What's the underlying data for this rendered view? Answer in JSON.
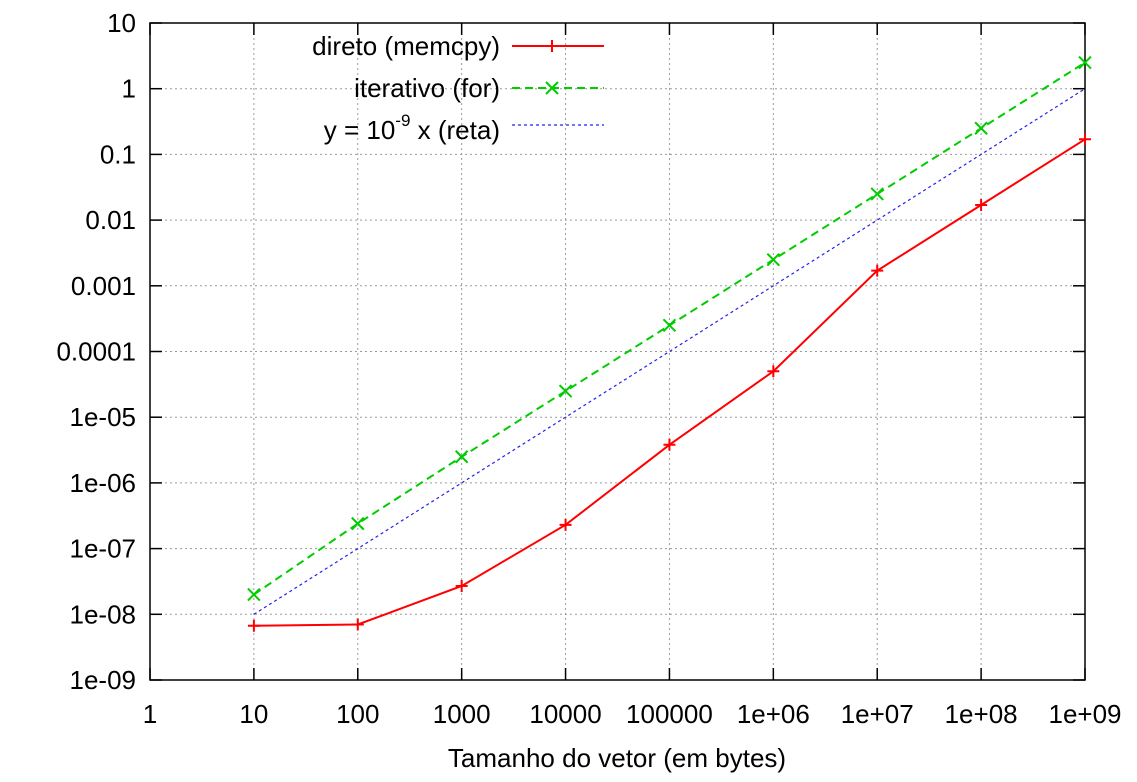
{
  "chart_data": {
    "type": "line",
    "title": "",
    "xlabel": "Tamanho do vetor (em bytes)",
    "ylabel": "",
    "xscale": "log",
    "yscale": "log",
    "xlim": [
      1,
      1000000000
    ],
    "ylim": [
      1e-09,
      10
    ],
    "grid": true,
    "legend_position": "top-left",
    "x_tick_values": [
      1,
      10,
      100,
      1000,
      10000,
      100000,
      1000000,
      10000000,
      100000000,
      1000000000
    ],
    "x_tick_labels": [
      "1",
      "10",
      "100",
      "1000",
      "10000",
      "100000",
      "1e+06",
      "1e+07",
      "1e+08",
      "1e+09"
    ],
    "y_tick_values": [
      1e-09,
      1e-08,
      1e-07,
      1e-06,
      1e-05,
      0.0001,
      0.001,
      0.01,
      0.1,
      1,
      10
    ],
    "y_tick_labels": [
      "1e-09",
      "1e-08",
      "1e-07",
      "1e-06",
      "1e-05",
      "0.0001",
      "0.001",
      "0.01",
      "0.1",
      "1",
      "10"
    ],
    "series": [
      {
        "name": "direto (memcpy)",
        "color": "#ff0000",
        "line_style": "solid",
        "marker": "plus",
        "x": [
          10,
          100,
          1000,
          10000,
          100000,
          1000000,
          10000000,
          100000000,
          1000000000
        ],
        "y": [
          6.7e-09,
          7e-09,
          2.7e-08,
          2.3e-07,
          3.8e-06,
          5e-05,
          0.0017,
          0.017,
          0.17
        ]
      },
      {
        "name": "iterativo (for)",
        "color": "#00cc00",
        "line_style": "dashed",
        "marker": "x",
        "x": [
          10,
          100,
          1000,
          10000,
          100000,
          1000000,
          10000000,
          100000000,
          1000000000
        ],
        "y": [
          2e-08,
          2.4e-07,
          2.5e-06,
          2.5e-05,
          0.00025,
          0.0025,
          0.025,
          0.25,
          2.5
        ]
      },
      {
        "name_parts": [
          "y = 10",
          "-9",
          " x (reta)"
        ],
        "color": "#2222ee",
        "line_style": "dotted",
        "marker": "none",
        "x": [
          10,
          1000000000
        ],
        "y": [
          1e-08,
          1
        ]
      }
    ]
  }
}
